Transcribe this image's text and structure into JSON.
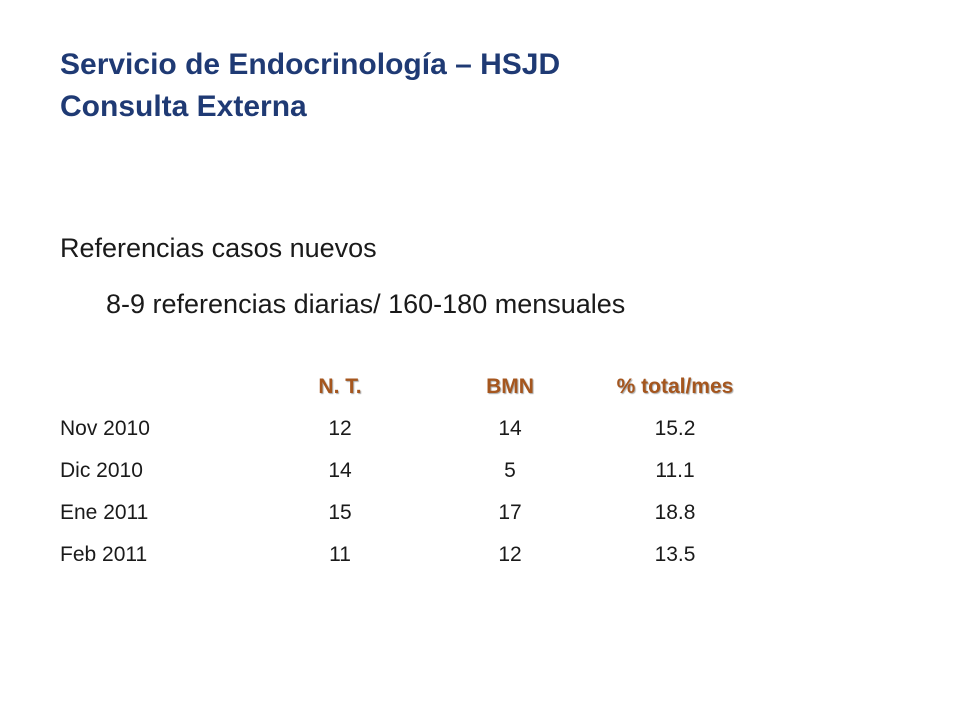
{
  "title": {
    "line1": "Servicio de Endocrinología – HSJD",
    "line2": "Consulta Externa"
  },
  "subtitle": {
    "line1": "Referencias casos nuevos",
    "line2": "8-9 referencias diarias/ 160-180 mensuales"
  },
  "table": {
    "headers": [
      "N. T.",
      "BMN",
      "% total/mes"
    ],
    "rows": [
      {
        "label": "Nov 2010",
        "nt": "12",
        "bmn": "14",
        "pct": "15.2"
      },
      {
        "label": "Dic 2010",
        "nt": "14",
        "bmn": "5",
        "pct": "11.1"
      },
      {
        "label": "Ene 2011",
        "nt": "15",
        "bmn": "17",
        "pct": "18.8"
      },
      {
        "label": "Feb 2011",
        "nt": "11",
        "bmn": "12",
        "pct": "13.5"
      }
    ]
  },
  "colors": {
    "title": "#1f3a74",
    "header": "#a5561e",
    "text": "#1a1a1a"
  }
}
